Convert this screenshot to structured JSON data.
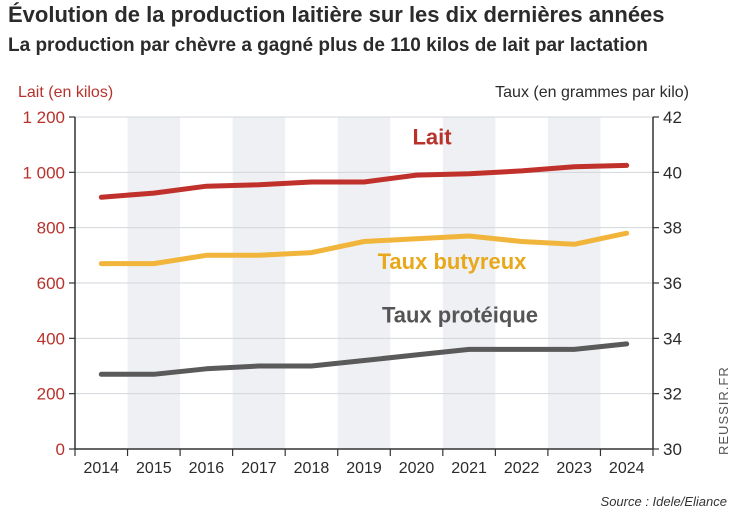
{
  "title": "Évolution de la production laitière sur les dix dernières années",
  "subtitle": "La production par chèvre a gagné plus de 110 kilos de lait par lactation",
  "left_axis_title": "Lait (en kilos)",
  "right_axis_title": "Taux (en grammes par kilo)",
  "source": "Source : Idele/Eliance",
  "brand": "REUSSIR.FR",
  "chart_data": {
    "type": "line",
    "categories": [
      "2014",
      "2015",
      "2016",
      "2017",
      "2018",
      "2019",
      "2020",
      "2021",
      "2022",
      "2023",
      "2024"
    ],
    "left_axis": {
      "label": "Lait (en kilos)",
      "range": [
        0,
        1200
      ],
      "ticks": [
        "0",
        "200",
        "400",
        "600",
        "800",
        "1 000",
        "1 200"
      ],
      "tick_values": [
        0,
        200,
        400,
        600,
        800,
        1000,
        1200
      ]
    },
    "right_axis": {
      "label": "Taux (en grammes par kilo)",
      "range": [
        30,
        42
      ],
      "ticks": [
        "30",
        "32",
        "34",
        "36",
        "38",
        "40",
        "42"
      ],
      "tick_values": [
        30,
        32,
        34,
        36,
        38,
        40,
        42
      ]
    },
    "series": [
      {
        "name": "Lait",
        "axis": "left",
        "color": "#c0312b",
        "label_color": "#b8322b",
        "values": [
          910,
          925,
          950,
          955,
          965,
          965,
          990,
          995,
          1005,
          1020,
          1025
        ]
      },
      {
        "name": "Taux butyreux",
        "axis": "right",
        "color": "#f0b53a",
        "label_color": "#e9a81a",
        "values": [
          36.7,
          36.7,
          37.0,
          37.0,
          37.1,
          37.5,
          37.6,
          37.7,
          37.5,
          37.4,
          37.8
        ]
      },
      {
        "name": "Taux protéique",
        "axis": "right",
        "color": "#5a5a5a",
        "label_color": "#555555",
        "values": [
          32.7,
          32.7,
          32.9,
          33.0,
          33.0,
          33.2,
          33.4,
          33.6,
          33.6,
          33.6,
          33.8
        ]
      }
    ],
    "grid": true,
    "alternating_bands": true
  }
}
